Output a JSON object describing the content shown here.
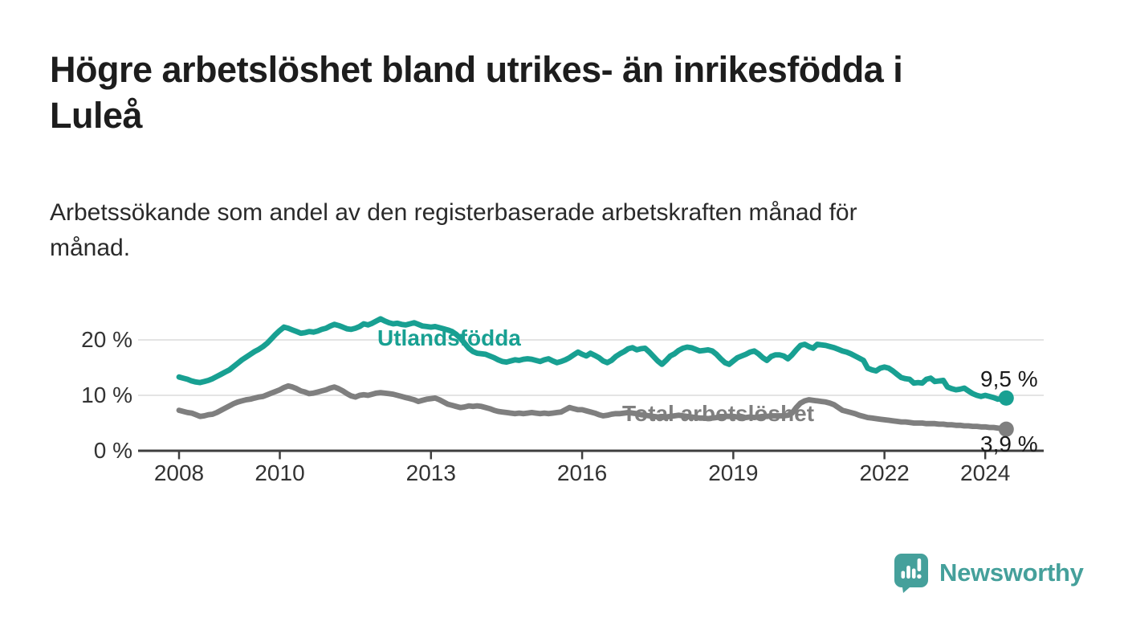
{
  "header": {
    "title_lines": [
      "Högre arbetslöshet bland utrikes- än inrikesfödda i",
      "Luleå"
    ],
    "subtitle_lines": [
      "Arbetssökande som andel av den registerbaserade arbetskraften månad för",
      "månad."
    ]
  },
  "chart_data": {
    "type": "line",
    "x_unit": "month",
    "x_start": "2008-01",
    "x_end": "2024-06",
    "x_tick_years": [
      2008,
      2010,
      2013,
      2016,
      2019,
      2022,
      2024
    ],
    "y_ticks": [
      0,
      10,
      20
    ],
    "y_tick_labels": [
      "0 %",
      "10 %",
      "20 %"
    ],
    "ylim": [
      0,
      25
    ],
    "grid": "horizontal",
    "legend_position": "inline-labels",
    "axis_color": "#3f3f3f",
    "gridline_color": "#dcdcdc",
    "series": [
      {
        "name": "Utlandsfödda",
        "color": "#18a092",
        "end_value_label": "9,5 %",
        "end_value": 9.5,
        "values": [
          13.3,
          13.1,
          12.9,
          12.6,
          12.4,
          12.3,
          12.5,
          12.7,
          13.0,
          13.4,
          13.8,
          14.2,
          14.6,
          15.2,
          15.8,
          16.4,
          16.9,
          17.4,
          17.9,
          18.3,
          18.8,
          19.4,
          20.2,
          21.0,
          21.7,
          22.3,
          22.1,
          21.8,
          21.5,
          21.2,
          21.3,
          21.5,
          21.4,
          21.6,
          21.9,
          22.1,
          22.5,
          22.8,
          22.6,
          22.3,
          22.0,
          21.9,
          22.1,
          22.4,
          22.9,
          22.7,
          23.0,
          23.4,
          23.8,
          23.4,
          23.1,
          22.9,
          23.0,
          22.8,
          22.7,
          22.9,
          23.1,
          22.8,
          22.5,
          22.4,
          22.3,
          22.4,
          22.2,
          22.0,
          21.8,
          21.5,
          21.0,
          20.3,
          19.4,
          18.5,
          17.9,
          17.6,
          17.5,
          17.4,
          17.1,
          16.8,
          16.4,
          16.1,
          16.0,
          16.2,
          16.4,
          16.3,
          16.5,
          16.6,
          16.5,
          16.3,
          16.1,
          16.4,
          16.6,
          16.2,
          15.9,
          16.1,
          16.4,
          16.8,
          17.3,
          17.8,
          17.4,
          17.1,
          17.6,
          17.2,
          16.8,
          16.2,
          15.9,
          16.3,
          17.0,
          17.5,
          17.9,
          18.4,
          18.6,
          18.2,
          18.4,
          18.5,
          17.8,
          17.0,
          16.2,
          15.6,
          16.3,
          17.1,
          17.5,
          18.1,
          18.5,
          18.7,
          18.6,
          18.3,
          18.0,
          18.1,
          18.2,
          18.0,
          17.4,
          16.6,
          15.9,
          15.6,
          16.2,
          16.8,
          17.1,
          17.4,
          17.8,
          18.0,
          17.5,
          16.8,
          16.3,
          17.0,
          17.3,
          17.3,
          17.1,
          16.6,
          17.3,
          18.2,
          19.0,
          19.2,
          18.8,
          18.5,
          19.2,
          19.1,
          19.0,
          18.8,
          18.6,
          18.3,
          18.0,
          17.8,
          17.5,
          17.1,
          16.7,
          16.3,
          14.9,
          14.6,
          14.4,
          14.9,
          15.1,
          14.9,
          14.4,
          13.8,
          13.2,
          13.0,
          12.9,
          12.2,
          12.3,
          12.2,
          12.9,
          13.1,
          12.5,
          12.6,
          12.7,
          11.5,
          11.2,
          11.0,
          11.1,
          11.3,
          10.8,
          10.3,
          10.0,
          9.8,
          10.0,
          9.8,
          9.6,
          9.3,
          9.4,
          9.5
        ]
      },
      {
        "name": "Total arbetslöshet",
        "color": "#7f7f7f",
        "end_value_label": "3,9 %",
        "end_value": 3.9,
        "values": [
          7.3,
          7.1,
          6.9,
          6.8,
          6.5,
          6.2,
          6.3,
          6.5,
          6.6,
          6.9,
          7.3,
          7.7,
          8.1,
          8.5,
          8.8,
          9.0,
          9.2,
          9.3,
          9.5,
          9.7,
          9.8,
          10.1,
          10.4,
          10.7,
          11.0,
          11.4,
          11.7,
          11.5,
          11.2,
          10.8,
          10.6,
          10.3,
          10.4,
          10.6,
          10.8,
          11.0,
          11.3,
          11.5,
          11.2,
          10.8,
          10.3,
          9.9,
          9.7,
          10.0,
          10.1,
          10.0,
          10.2,
          10.4,
          10.5,
          10.4,
          10.3,
          10.2,
          10.0,
          9.8,
          9.6,
          9.4,
          9.2,
          8.9,
          9.1,
          9.3,
          9.4,
          9.5,
          9.2,
          8.8,
          8.4,
          8.2,
          8.0,
          7.8,
          7.9,
          8.1,
          8.0,
          8.1,
          8.0,
          7.8,
          7.6,
          7.3,
          7.1,
          7.0,
          6.9,
          6.8,
          6.7,
          6.8,
          6.7,
          6.8,
          6.9,
          6.8,
          6.7,
          6.8,
          6.7,
          6.8,
          6.9,
          7.0,
          7.4,
          7.8,
          7.6,
          7.4,
          7.4,
          7.2,
          7.0,
          6.8,
          6.5,
          6.3,
          6.4,
          6.6,
          6.7,
          6.7,
          6.8,
          6.9,
          6.8,
          6.7,
          6.5,
          6.4,
          6.3,
          6.2,
          6.1,
          6.0,
          6.1,
          6.2,
          6.3,
          6.4,
          6.3,
          6.2,
          6.1,
          6.0,
          5.9,
          5.9,
          5.8,
          5.9,
          6.0,
          6.1,
          6.2,
          6.2,
          6.2,
          6.1,
          6.0,
          6.0,
          6.1,
          6.0,
          6.1,
          6.2,
          6.2,
          6.3,
          6.3,
          6.3,
          6.3,
          6.4,
          6.8,
          7.8,
          8.6,
          9.0,
          9.2,
          9.1,
          9.0,
          8.9,
          8.8,
          8.6,
          8.3,
          7.8,
          7.3,
          7.1,
          6.9,
          6.7,
          6.4,
          6.2,
          6.0,
          5.9,
          5.8,
          5.7,
          5.6,
          5.5,
          5.4,
          5.3,
          5.2,
          5.2,
          5.1,
          5.0,
          5.0,
          5.0,
          4.9,
          4.9,
          4.9,
          4.8,
          4.8,
          4.7,
          4.7,
          4.6,
          4.6,
          4.5,
          4.5,
          4.4,
          4.4,
          4.3,
          4.3,
          4.2,
          4.2,
          4.1,
          4.0,
          3.9
        ]
      }
    ]
  },
  "footer": {
    "brand": "Newsworthy",
    "brand_color": "#45a09b",
    "logo_icon": "speech-bubble-bar-chart"
  }
}
